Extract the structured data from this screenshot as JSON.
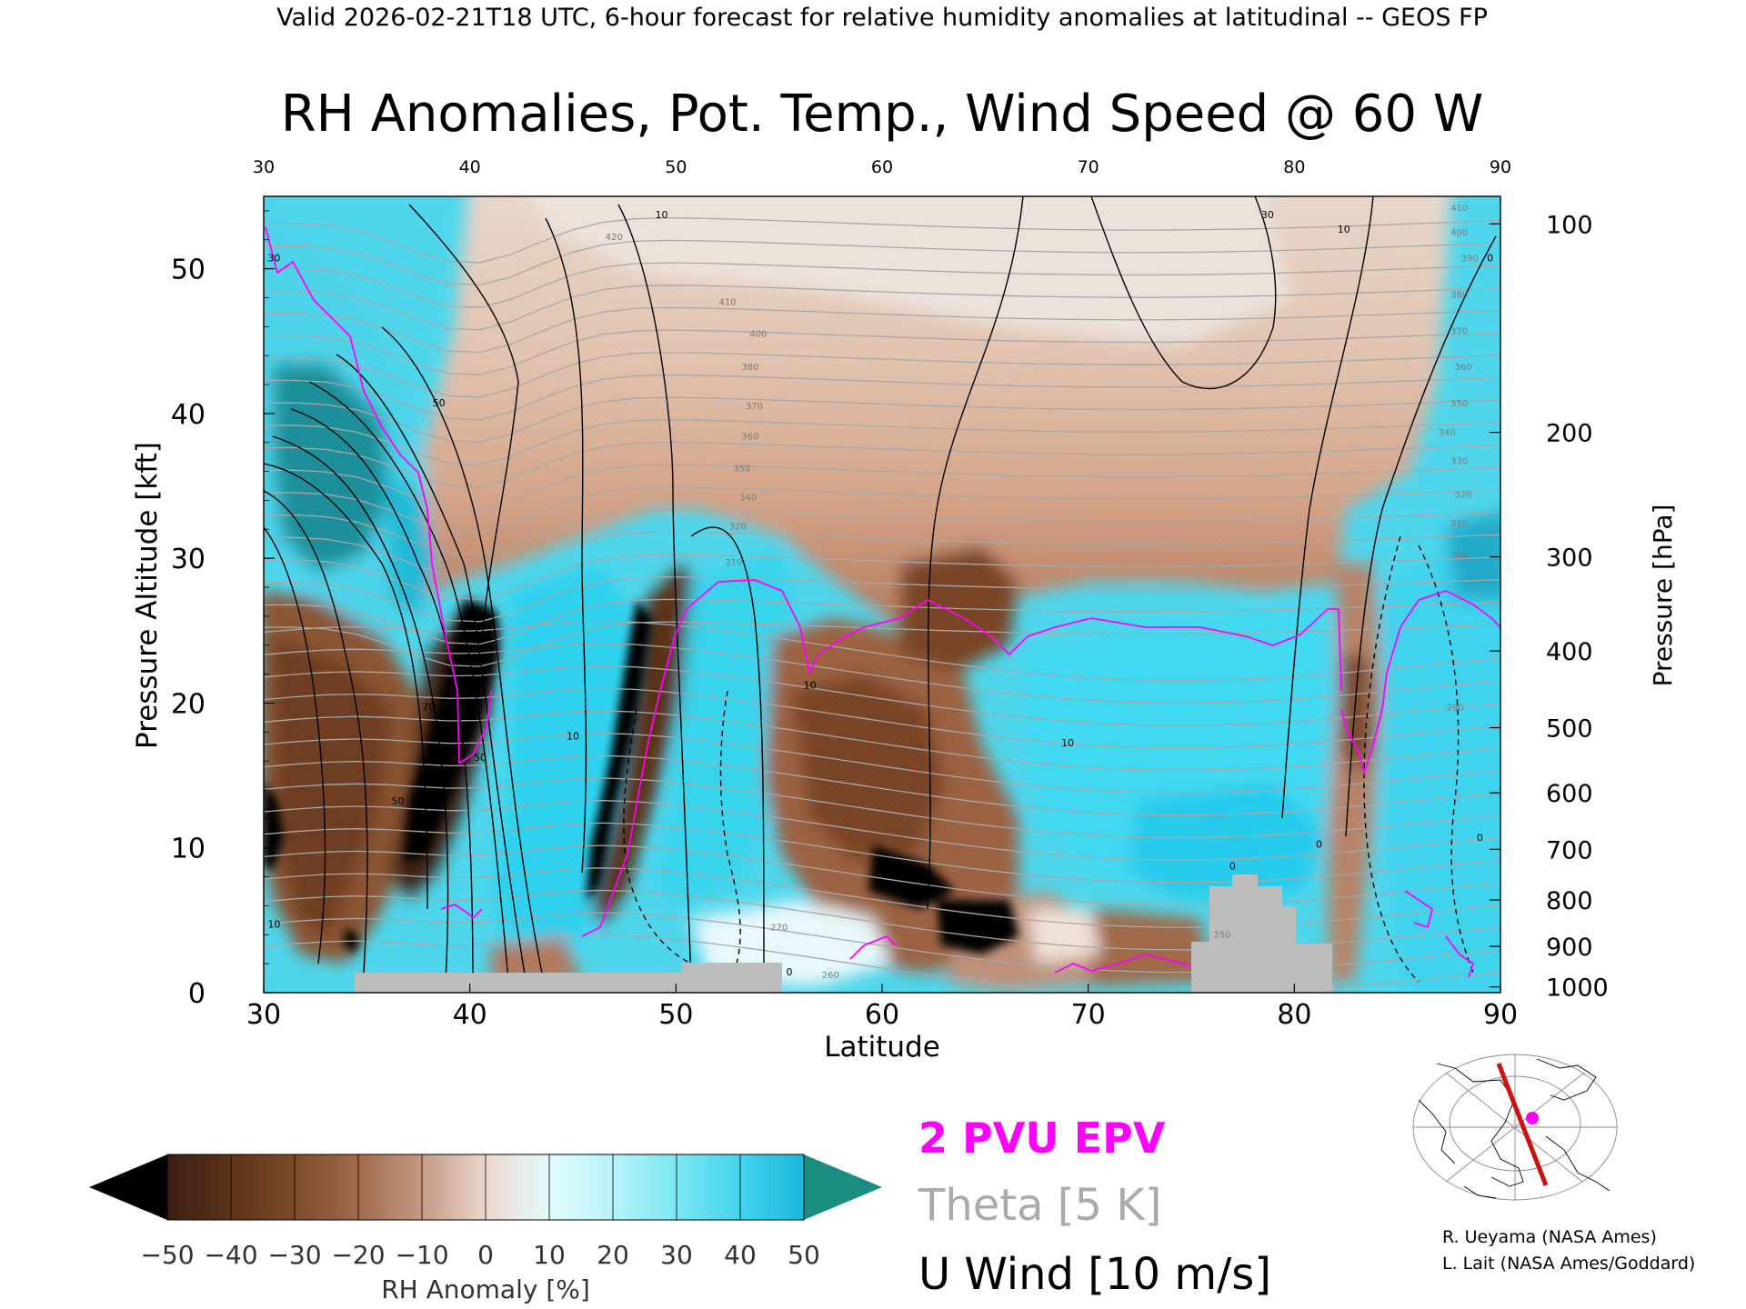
{
  "header": {
    "valid_line": "Valid 2026-02-21T18 UTC, 6-hour forecast for relative humidity anomalies at latitudinal -- GEOS FP"
  },
  "chart_data": {
    "type": "heatmap",
    "title": "RH Anomalies, Pot. Temp., Wind Speed @ 60 W",
    "xlabel": "Latitude",
    "ylabel": "Pressure Altitude [kft]",
    "y2label": "Pressure [hPa]",
    "xlim": [
      30,
      90
    ],
    "ylim": [
      0,
      55
    ],
    "x_ticks": [
      30,
      40,
      50,
      60,
      70,
      80,
      90
    ],
    "x_tick_labels": [
      "30",
      "40",
      "50",
      "60",
      "70",
      "80",
      "90"
    ],
    "top_ticks": [
      30,
      40,
      50,
      60,
      70,
      80,
      90
    ],
    "top_tick_labels": [
      "30",
      "40",
      "50",
      "60",
      "70",
      "80",
      "90"
    ],
    "y_ticks": [
      0,
      10,
      20,
      30,
      40,
      50
    ],
    "y_tick_labels": [
      "0",
      "10",
      "20",
      "30",
      "40",
      "50"
    ],
    "pressure_levels": [
      {
        "label": "100",
        "kft": 53.1
      },
      {
        "label": "200",
        "kft": 38.7
      },
      {
        "label": "300",
        "kft": 30.1
      },
      {
        "label": "400",
        "kft": 23.6
      },
      {
        "label": "500",
        "kft": 18.3
      },
      {
        "label": "600",
        "kft": 13.8
      },
      {
        "label": "700",
        "kft": 9.9
      },
      {
        "label": "800",
        "kft": 6.4
      },
      {
        "label": "900",
        "kft": 3.2
      },
      {
        "label": "1000",
        "kft": 0.4
      }
    ],
    "theta_labels": [
      {
        "text": "420",
        "lat": 47,
        "kft": 52.0
      },
      {
        "text": "410",
        "lat": 52.5,
        "kft": 47.5
      },
      {
        "text": "400",
        "lat": 54.0,
        "kft": 45.3
      },
      {
        "text": "380",
        "lat": 53.6,
        "kft": 43.0
      },
      {
        "text": "370",
        "lat": 53.8,
        "kft": 40.3
      },
      {
        "text": "360",
        "lat": 53.6,
        "kft": 38.2
      },
      {
        "text": "350",
        "lat": 53.2,
        "kft": 36.0
      },
      {
        "text": "340",
        "lat": 53.5,
        "kft": 34.0
      },
      {
        "text": "320",
        "lat": 53.0,
        "kft": 32.0
      },
      {
        "text": "310",
        "lat": 52.8,
        "kft": 29.5
      },
      {
        "text": "410",
        "lat": 88.0,
        "kft": 54.0
      },
      {
        "text": "400",
        "lat": 88.0,
        "kft": 52.3
      },
      {
        "text": "390",
        "lat": 88.5,
        "kft": 50.5
      },
      {
        "text": "380",
        "lat": 88.0,
        "kft": 48.0
      },
      {
        "text": "370",
        "lat": 88.0,
        "kft": 45.5
      },
      {
        "text": "360",
        "lat": 88.2,
        "kft": 43.0
      },
      {
        "text": "350",
        "lat": 88.0,
        "kft": 40.5
      },
      {
        "text": "340",
        "lat": 87.4,
        "kft": 38.5
      },
      {
        "text": "330",
        "lat": 88.0,
        "kft": 36.5
      },
      {
        "text": "320",
        "lat": 88.2,
        "kft": 34.2
      },
      {
        "text": "310",
        "lat": 88.0,
        "kft": 32.2
      },
      {
        "text": "300",
        "lat": 88.0,
        "kft": 30.0
      },
      {
        "text": "290",
        "lat": 87.8,
        "kft": 19.5
      },
      {
        "text": "270",
        "lat": 55.0,
        "kft": 4.3
      },
      {
        "text": "260",
        "lat": 57.5,
        "kft": 1.0
      },
      {
        "text": "250",
        "lat": 76.5,
        "kft": 3.8
      }
    ],
    "wind_labels": [
      {
        "text": "30",
        "lat": 30.5,
        "kft": 50.5
      },
      {
        "text": "50",
        "lat": 38.5,
        "kft": 40.5
      },
      {
        "text": "70",
        "lat": 38.0,
        "kft": 19.5
      },
      {
        "text": "50",
        "lat": 40.5,
        "kft": 16.0
      },
      {
        "text": "50",
        "lat": 36.5,
        "kft": 13.0
      },
      {
        "text": "10",
        "lat": 30.5,
        "kft": 4.5
      },
      {
        "text": "10",
        "lat": 49.3,
        "kft": 53.5
      },
      {
        "text": "10",
        "lat": 45.0,
        "kft": 17.5
      },
      {
        "text": "10",
        "lat": 56.5,
        "kft": 21.0
      },
      {
        "text": "10",
        "lat": 69.0,
        "kft": 17.0
      },
      {
        "text": "30",
        "lat": 78.7,
        "kft": 53.5
      },
      {
        "text": "10",
        "lat": 82.4,
        "kft": 52.5
      },
      {
        "text": "0",
        "lat": 89.5,
        "kft": 50.5
      },
      {
        "text": "0",
        "lat": 81.2,
        "kft": 10.0
      },
      {
        "text": "0",
        "lat": 77.0,
        "kft": 8.5
      },
      {
        "text": "0",
        "lat": 55.5,
        "kft": 1.2
      },
      {
        "text": "0",
        "lat": 89.0,
        "kft": 10.5
      }
    ],
    "colorbar": {
      "label": "RH Anomaly [%]",
      "ticks": [
        "−50",
        "−40",
        "−30",
        "−20",
        "−10",
        "0",
        "10",
        "20",
        "30",
        "40",
        "50"
      ],
      "colors": [
        "#3b1f12",
        "#5c3319",
        "#7d4a2a",
        "#a06a4c",
        "#c49a84",
        "#ead8cc",
        "#e2fbfc",
        "#b5f3f8",
        "#7be6f2",
        "#43d4ec",
        "#19b8dc"
      ],
      "under_color": "#000000",
      "over_color": "#1a8c80"
    },
    "legend": {
      "epv": "2 PVU EPV",
      "epv_color": "#ff00ff",
      "theta": "Theta [5 K]",
      "theta_color": "#aaaaaa",
      "wind": "U Wind [10 m/s]",
      "wind_color": "#000000"
    }
  },
  "credits": {
    "line1": "R. Ueyama (NASA Ames)",
    "line2": "L. Lait (NASA Ames/Goddard)"
  },
  "colors": {
    "magenta": "#ff00ff",
    "theta_gray": "#a8a8a8",
    "terrain_gray": "#bdbdbd",
    "section_red": "#cc1111"
  }
}
